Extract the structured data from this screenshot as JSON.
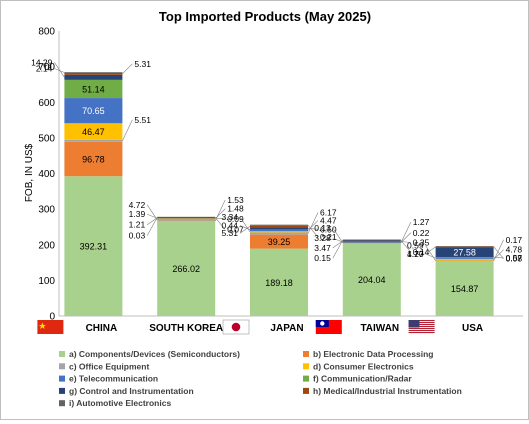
{
  "chart_data": {
    "type": "bar",
    "stacked": true,
    "title": "Top Imported Products (May 2025)",
    "ylabel": "FOB, IN US$",
    "xlabel": "",
    "ylim": [
      0,
      800
    ],
    "yticks": [
      0,
      100,
      200,
      300,
      400,
      500,
      600,
      700,
      800
    ],
    "grid": false,
    "legend_position": "bottom",
    "categories": [
      "CHINA",
      "SOUTH KOREA",
      "JAPAN",
      "TAIWAN",
      "USA"
    ],
    "flag_icons": [
      "china-flag-icon",
      "",
      "japan-flag-icon",
      "taiwan-flag-icon",
      "usa-flag-icon"
    ],
    "series": [
      {
        "name": "a) Components/Devices (Semiconductors)",
        "color": "#a9d18e",
        "values": [
          392.31,
          266.02,
          189.18,
          204.04,
          154.87
        ]
      },
      {
        "name": "b) Electronic Data Processing",
        "color": "#ed7d31",
        "values": [
          96.78,
          1.53,
          39.25,
          1.27,
          0.17
        ]
      },
      {
        "name": "c) Office Equipment",
        "color": "#a5a5a5",
        "values": [
          5.51,
          4.72,
          6.17,
          0.13,
          0.59
        ]
      },
      {
        "name": "d) Consumer Electronics",
        "color": "#ffc000",
        "values": [
          46.47,
          1.48,
          3.34,
          0.22,
          4.78
        ]
      },
      {
        "name": "e) Telecommunication",
        "color": "#4472c4",
        "values": [
          70.65,
          1.39,
          4.47,
          3.28,
          4.7
        ]
      },
      {
        "name": "f) Communication/Radar",
        "color": "#70ad47",
        "values": [
          51.14,
          0.09,
          0.44,
          0.35,
          0.57
        ]
      },
      {
        "name": "g) Control and Instrumentation",
        "color": "#264478",
        "values": [
          14.29,
          1.21,
          6.5,
          3.47,
          27.58
        ]
      },
      {
        "name": "h) Medical/Industrial Instrumentation",
        "color": "#9e480e",
        "values": [
          5.31,
          0.07,
          5.31,
          0.14,
          1.27
        ]
      },
      {
        "name": "i) Automotive Electronics",
        "color": "#636363",
        "values": [
          2.14,
          0.03,
          0.21,
          0.15,
          0.08
        ]
      }
    ]
  }
}
